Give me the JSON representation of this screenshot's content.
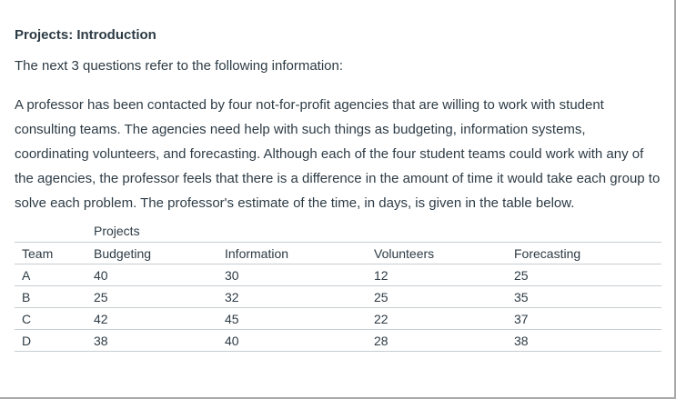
{
  "page": {
    "title": "Projects: Introduction",
    "intro": "The next 3 questions refer to the following information:",
    "description": "A professor has been contacted by four not-for-profit agencies that are willing to work with student consulting teams. The agencies need help with such things as budgeting, information systems, coordinating volunteers, and forecasting. Although each of the four student teams could work with any of the agencies, the professor feels that there is a difference in the amount of time it would take each group to solve each problem. The professor's estimate of the time, in days, is given in the table below."
  },
  "table": {
    "group_header": "Projects",
    "columns": [
      "Team",
      "Budgeting",
      "Information",
      "Volunteers",
      "Forecasting"
    ],
    "rows": [
      {
        "team": "A",
        "values": [
          40,
          30,
          12,
          25
        ]
      },
      {
        "team": "B",
        "values": [
          25,
          32,
          25,
          35
        ]
      },
      {
        "team": "C",
        "values": [
          42,
          45,
          22,
          37
        ]
      },
      {
        "team": "D",
        "values": [
          38,
          40,
          28,
          38
        ]
      }
    ],
    "units": "days"
  },
  "colors": {
    "text": "#2D3B45",
    "table_border": "#C7CDD1",
    "page_border": "#A9A9A9",
    "background": "#FFFFFF"
  }
}
